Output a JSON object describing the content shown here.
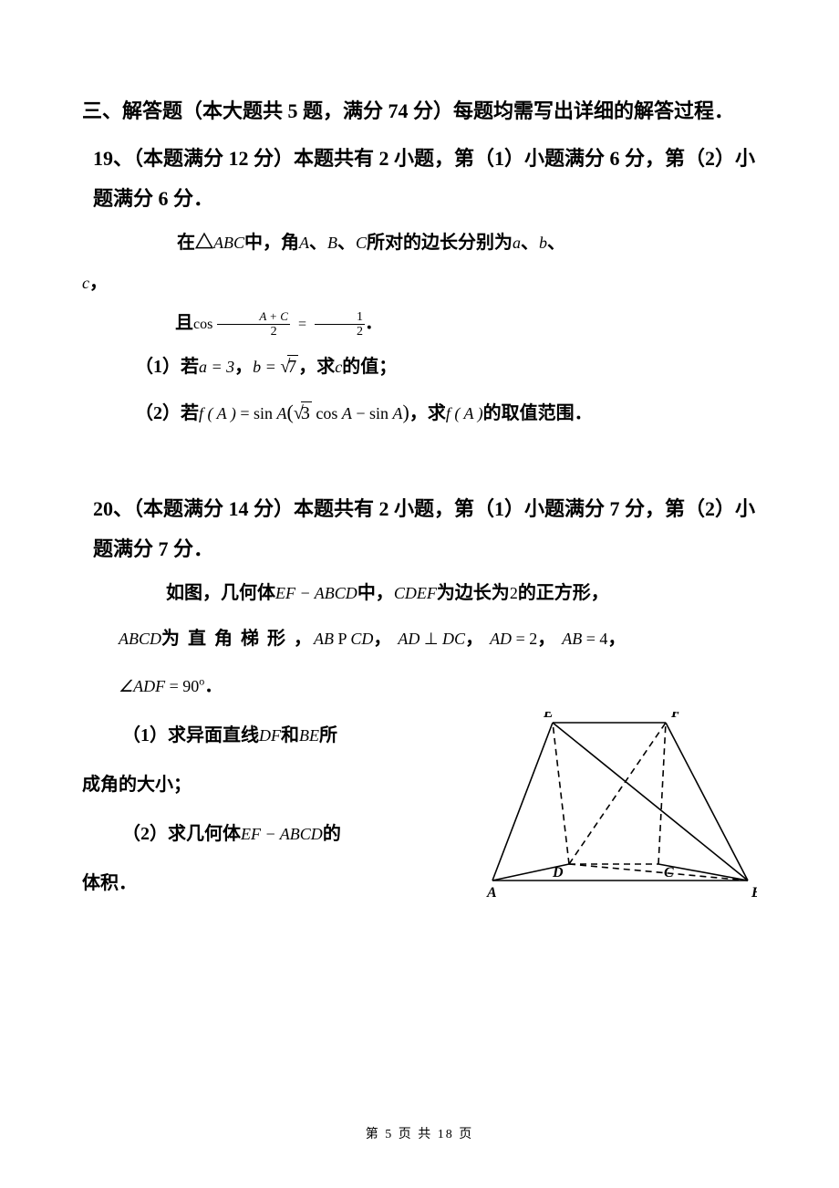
{
  "section": {
    "title": "三、解答题（本大题共 5 题，满分 74 分）每题均需写出详细的解答过程．"
  },
  "q19": {
    "header": "19、（本题满分 12 分）本题共有 2 小题，第（1）小题满分 6 分，第（2）小题满分 6 分．",
    "intro_prefix": "在△",
    "intro_ABC": "ABC",
    "intro_mid1": "中，角",
    "intro_A": "A",
    "intro_sep1": "、",
    "intro_B": "B",
    "intro_sep2": "、",
    "intro_C": "C",
    "intro_mid2": "所对的边长分别为",
    "intro_a": "a",
    "intro_sep3": "、",
    "intro_b": "b",
    "intro_sep4": "、",
    "intro_c": "c",
    "intro_comma": "，",
    "cond_prefix": "且",
    "cond_cos": "cos",
    "cond_frac_num": "A + C",
    "cond_frac_den": "2",
    "cond_eq": "=",
    "cond_rhs_num": "1",
    "cond_rhs_den": "2",
    "cond_period": "．",
    "sub1_label": "（1）若",
    "sub1_a_eq": "a = 3",
    "sub1_comma1": "，",
    "sub1_b_eq_pre": "b = ",
    "sub1_b_eq_radicand": "7",
    "sub1_comma2": "，求",
    "sub1_c": "c",
    "sub1_tail": "的值；",
    "sub2_label": "（2）若",
    "sub2_fA": "f ( A )",
    "sub2_eq": " = sin ",
    "sub2_A": "A",
    "sub2_paren_open": "(",
    "sub2_sqrt3": "3",
    "sub2_cos": " cos ",
    "sub2_A2": "A",
    "sub2_minus": " − sin ",
    "sub2_A3": "A",
    "sub2_paren_close": ")",
    "sub2_comma": "，求",
    "sub2_fA2": "f ( A )",
    "sub2_tail": "的取值范围．"
  },
  "q20": {
    "header": "20、（本题满分 14 分）本题共有 2 小题，第（1）小题满分 7 分，第（2）小题满分 7 分．",
    "d1_prefix": "如图，几何体",
    "d1_solid": "EF − ABCD",
    "d1_mid": "中，",
    "d1_cdef": "CDEF",
    "d1_tail1": "为边长为",
    "d1_two": "2",
    "d1_tail2": "的正方形，",
    "d2_abcd": "ABCD",
    "d2_mid1": "为 直 角 梯 形 ，",
    "d2_ab": "AB",
    "d2_par": " P ",
    "d2_cd": "CD",
    "d2_c1": "，",
    "d2_ad": "AD",
    "d2_perp": " ⊥ ",
    "d2_dc": "DC",
    "d2_c2": "，",
    "d2_ad2": "AD",
    "d2_eq2": " = 2",
    "d2_c3": "，",
    "d2_ab2": "AB",
    "d2_eq4": " = 4",
    "d2_c4": "，",
    "d3_angle": "∠ADF",
    "d3_eq": " = 90",
    "d3_deg": "o",
    "d3_period": "．",
    "s1_label": "（1）求异面直线",
    "s1_df": "DF",
    "s1_and": "和",
    "s1_be": "BE",
    "s1_tail1": "所",
    "s1_tail2": "成角的大小；",
    "s2_label": "（2）求几何体",
    "s2_solid": "EF − ABCD",
    "s2_tail": "的",
    "s2_tail2": "体积．",
    "figure": {
      "labels": {
        "A": "A",
        "B": "B",
        "C": "C",
        "D": "D",
        "E": "E",
        "F": "F"
      },
      "points": {
        "A": [
          10,
          185
        ],
        "B": [
          290,
          185
        ],
        "D": [
          94,
          167
        ],
        "C": [
          192,
          167
        ],
        "E": [
          76,
          12
        ],
        "F": [
          200,
          12
        ]
      },
      "solid_edges": [
        [
          "A",
          "B"
        ],
        [
          "A",
          "D"
        ],
        [
          "A",
          "E"
        ],
        [
          "B",
          "C"
        ],
        [
          "B",
          "E"
        ],
        [
          "B",
          "F"
        ],
        [
          "E",
          "F"
        ]
      ],
      "dashed_edges": [
        [
          "D",
          "C"
        ],
        [
          "D",
          "E"
        ],
        [
          "D",
          "F"
        ],
        [
          "C",
          "F"
        ],
        [
          "D",
          "B"
        ]
      ],
      "stroke": "#000000",
      "stroke_width": 1.6,
      "dash": "7,5",
      "label_fontsize": 16,
      "label_fontweight": "bold",
      "label_fontstyle": "italic",
      "label_fontfamily": "Times New Roman"
    }
  },
  "footer": {
    "prefix": "第 ",
    "page": "5",
    "mid": " 页 共 ",
    "total": "18",
    "suffix": " 页"
  }
}
